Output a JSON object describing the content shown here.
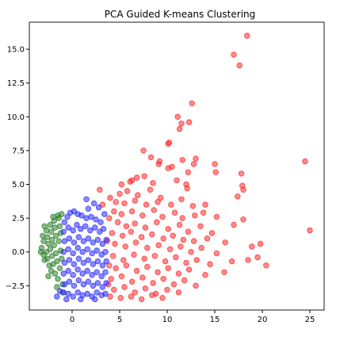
{
  "chart_data": {
    "type": "scatter",
    "title": "PCA Guided K-means Clustering",
    "xlabel": "",
    "ylabel": "",
    "xlim": [
      -4.5,
      26.5
    ],
    "ylim": [
      -4.3,
      17.0
    ],
    "xticks": [
      {
        "value": 0,
        "label": "0"
      },
      {
        "value": 5,
        "label": "5"
      },
      {
        "value": 10,
        "label": "10"
      },
      {
        "value": 15,
        "label": "15"
      },
      {
        "value": 20,
        "label": "20"
      },
      {
        "value": 25,
        "label": "25"
      }
    ],
    "yticks": [
      {
        "value": -2.5,
        "label": "−2.5"
      },
      {
        "value": 0,
        "label": "0.0"
      },
      {
        "value": 2.5,
        "label": "2.5"
      },
      {
        "value": 5,
        "label": "5.0"
      },
      {
        "value": 7.5,
        "label": "7.5"
      },
      {
        "value": 10,
        "label": "10.0"
      },
      {
        "value": 12.5,
        "label": "12.5"
      },
      {
        "value": 15,
        "label": "15.0"
      }
    ],
    "grid": false,
    "marker_opacity": 0.55,
    "series": [
      {
        "color": "#ff2a2a",
        "points": [
          [
            18.4,
            16.0
          ],
          [
            17.0,
            14.6
          ],
          [
            17.6,
            13.8
          ],
          [
            12.6,
            11.0
          ],
          [
            11.1,
            10.0
          ],
          [
            11.5,
            9.5
          ],
          [
            12.3,
            9.6
          ],
          [
            11.3,
            9.1
          ],
          [
            10.2,
            8.1
          ],
          [
            10.1,
            8.0
          ],
          [
            7.5,
            7.5
          ],
          [
            8.3,
            7.0
          ],
          [
            13.0,
            6.9
          ],
          [
            9.2,
            6.7
          ],
          [
            9.1,
            6.5
          ],
          [
            11.6,
            6.8
          ],
          [
            12.8,
            6.5
          ],
          [
            10.1,
            6.2
          ],
          [
            15.0,
            6.5
          ],
          [
            24.5,
            6.7
          ],
          [
            10.5,
            6.3
          ],
          [
            12.2,
            5.9
          ],
          [
            15.1,
            5.9
          ],
          [
            17.8,
            5.8
          ],
          [
            6.3,
            5.3
          ],
          [
            6.8,
            5.5
          ],
          [
            7.6,
            5.6
          ],
          [
            8.5,
            5.1
          ],
          [
            5.2,
            5.0
          ],
          [
            6.1,
            5.2
          ],
          [
            11.0,
            5.3
          ],
          [
            12.0,
            5.0
          ],
          [
            17.9,
            4.9
          ],
          [
            18.0,
            4.6
          ],
          [
            12.1,
            4.7
          ],
          [
            5.0,
            4.3
          ],
          [
            5.8,
            4.5
          ],
          [
            6.9,
            4.2
          ],
          [
            8.2,
            4.6
          ],
          [
            9.3,
            4.0
          ],
          [
            4.6,
            3.7
          ],
          [
            5.5,
            3.6
          ],
          [
            6.6,
            3.8
          ],
          [
            7.8,
            3.5
          ],
          [
            9.0,
            3.7
          ],
          [
            10.4,
            3.5
          ],
          [
            11.5,
            3.9
          ],
          [
            12.7,
            3.4
          ],
          [
            14.0,
            3.5
          ],
          [
            13.8,
            2.9
          ],
          [
            17.4,
            4.1
          ],
          [
            15.2,
            2.6
          ],
          [
            18.0,
            2.4
          ],
          [
            4.4,
            3.0
          ],
          [
            5.2,
            2.8
          ],
          [
            6.3,
            3.0
          ],
          [
            7.4,
            2.7
          ],
          [
            8.6,
            3.1
          ],
          [
            9.5,
            2.6
          ],
          [
            10.8,
            2.9
          ],
          [
            11.6,
            2.5
          ],
          [
            12.9,
            2.7
          ],
          [
            4.8,
            2.2
          ],
          [
            5.7,
            1.9
          ],
          [
            6.6,
            2.1
          ],
          [
            7.7,
            1.8
          ],
          [
            8.9,
            2.2
          ],
          [
            10.1,
            1.7
          ],
          [
            11.3,
            2.0
          ],
          [
            12.2,
            1.5
          ],
          [
            13.5,
            1.9
          ],
          [
            17.0,
            2.0
          ],
          [
            25.0,
            1.6
          ],
          [
            14.7,
            1.4
          ],
          [
            4.2,
            1.4
          ],
          [
            5.3,
            1.2
          ],
          [
            6.2,
            1.5
          ],
          [
            7.3,
            1.1
          ],
          [
            8.4,
            1.3
          ],
          [
            9.6,
            1.0
          ],
          [
            10.6,
            1.2
          ],
          [
            11.7,
            0.9
          ],
          [
            12.8,
            0.8
          ],
          [
            14.2,
            1.0
          ],
          [
            16.1,
            0.7
          ],
          [
            4.5,
            0.6
          ],
          [
            5.6,
            0.4
          ],
          [
            6.7,
            0.7
          ],
          [
            7.9,
            0.3
          ],
          [
            9.1,
            0.5
          ],
          [
            10.3,
            0.2
          ],
          [
            11.4,
            0.4
          ],
          [
            12.5,
            0.0
          ],
          [
            13.6,
            0.3
          ],
          [
            15.2,
            -0.1
          ],
          [
            19.8,
            0.6
          ],
          [
            18.9,
            0.4
          ],
          [
            18.5,
            -0.6
          ],
          [
            19.5,
            -0.4
          ],
          [
            20.4,
            -1.0
          ],
          [
            4.3,
            -0.3
          ],
          [
            5.4,
            -0.6
          ],
          [
            6.5,
            -0.2
          ],
          [
            7.6,
            -0.5
          ],
          [
            8.7,
            -0.3
          ],
          [
            9.8,
            -0.7
          ],
          [
            10.9,
            -0.4
          ],
          [
            12.0,
            -0.8
          ],
          [
            13.1,
            -0.6
          ],
          [
            14.5,
            -0.9
          ],
          [
            16.8,
            -0.7
          ],
          [
            4.6,
            -1.2
          ],
          [
            5.7,
            -1.0
          ],
          [
            6.8,
            -1.4
          ],
          [
            7.9,
            -1.1
          ],
          [
            9.0,
            -1.5
          ],
          [
            10.1,
            -1.2
          ],
          [
            11.2,
            -1.6
          ],
          [
            12.3,
            -1.3
          ],
          [
            14.0,
            -1.7
          ],
          [
            16.0,
            -1.5
          ],
          [
            4.1,
            -2.0
          ],
          [
            5.2,
            -1.8
          ],
          [
            6.3,
            -2.2
          ],
          [
            7.4,
            -1.9
          ],
          [
            8.5,
            -2.3
          ],
          [
            9.6,
            -2.0
          ],
          [
            10.7,
            -2.4
          ],
          [
            11.8,
            -2.1
          ],
          [
            13.0,
            -2.5
          ],
          [
            4.4,
            -2.8
          ],
          [
            5.5,
            -2.6
          ],
          [
            6.6,
            -3.0
          ],
          [
            7.7,
            -2.7
          ],
          [
            8.8,
            -3.1
          ],
          [
            10.0,
            -2.8
          ],
          [
            11.2,
            -3.0
          ],
          [
            4.0,
            -3.3
          ],
          [
            5.1,
            -3.4
          ],
          [
            6.2,
            -3.3
          ],
          [
            7.3,
            -3.5
          ],
          [
            8.4,
            -3.2
          ],
          [
            9.5,
            -3.4
          ],
          [
            3.8,
            -2.4
          ],
          [
            3.9,
            -1.0
          ],
          [
            3.7,
            0.8
          ],
          [
            3.9,
            2.5
          ],
          [
            4.0,
            4.0
          ],
          [
            2.9,
            4.6
          ],
          [
            3.2,
            3.5
          ]
        ]
      },
      {
        "color": "#2a7f2a",
        "points": [
          [
            -3.1,
            1.2
          ],
          [
            -3.0,
            0.8
          ],
          [
            -3.2,
            0.3
          ],
          [
            -3.0,
            -0.2
          ],
          [
            -2.9,
            -0.6
          ],
          [
            -2.7,
            1.6
          ],
          [
            -2.6,
            1.1
          ],
          [
            -2.5,
            0.6
          ],
          [
            -2.7,
            0.0
          ],
          [
            -2.6,
            -0.5
          ],
          [
            -2.4,
            -1.0
          ],
          [
            -2.3,
            2.0
          ],
          [
            -2.2,
            1.5
          ],
          [
            -2.1,
            0.9
          ],
          [
            -2.3,
            0.2
          ],
          [
            -2.1,
            -0.3
          ],
          [
            -2.0,
            -0.9
          ],
          [
            -2.2,
            -1.4
          ],
          [
            -1.9,
            2.3
          ],
          [
            -1.8,
            1.8
          ],
          [
            -1.7,
            1.2
          ],
          [
            -1.9,
            0.5
          ],
          [
            -1.7,
            -0.1
          ],
          [
            -1.6,
            -0.7
          ],
          [
            -1.8,
            -1.6
          ],
          [
            -1.5,
            -2.0
          ],
          [
            -1.4,
            2.5
          ],
          [
            -1.3,
            1.9
          ],
          [
            -1.2,
            1.4
          ],
          [
            -1.4,
            0.8
          ],
          [
            -1.2,
            0.1
          ],
          [
            -1.1,
            -0.5
          ],
          [
            -1.3,
            -1.2
          ],
          [
            -1.0,
            -2.4
          ],
          [
            -2.5,
            -1.8
          ],
          [
            -2.9,
            1.9
          ],
          [
            -1.5,
            2.7
          ],
          [
            -1.1,
            2.8
          ],
          [
            -2.0,
            2.6
          ],
          [
            -3.3,
            0.0
          ],
          [
            -1.0,
            -3.0
          ],
          [
            -1.6,
            -2.6
          ]
        ]
      },
      {
        "color": "#2a2aff",
        "points": [
          [
            -0.8,
            2.2
          ],
          [
            -0.5,
            2.6
          ],
          [
            -0.2,
            2.9
          ],
          [
            0.2,
            3.0
          ],
          [
            0.6,
            2.8
          ],
          [
            1.0,
            2.7
          ],
          [
            1.5,
            2.5
          ],
          [
            2.0,
            2.6
          ],
          [
            2.5,
            2.4
          ],
          [
            3.0,
            2.2
          ],
          [
            1.7,
            3.2
          ],
          [
            2.3,
            3.6
          ],
          [
            1.5,
            3.9
          ],
          [
            2.8,
            3.3
          ],
          [
            3.4,
            2.8
          ],
          [
            -0.9,
            1.5
          ],
          [
            -0.4,
            1.8
          ],
          [
            0.1,
            1.6
          ],
          [
            0.5,
            2.0
          ],
          [
            0.9,
            1.7
          ],
          [
            1.4,
            1.9
          ],
          [
            1.9,
            1.6
          ],
          [
            2.4,
            1.8
          ],
          [
            2.9,
            1.5
          ],
          [
            3.3,
            1.7
          ],
          [
            -0.8,
            0.8
          ],
          [
            -0.3,
            1.0
          ],
          [
            0.2,
            0.7
          ],
          [
            0.7,
            1.1
          ],
          [
            1.2,
            0.8
          ],
          [
            1.7,
            1.0
          ],
          [
            2.2,
            0.7
          ],
          [
            2.7,
            0.9
          ],
          [
            3.2,
            0.6
          ],
          [
            3.6,
            0.9
          ],
          [
            -0.9,
            0.0
          ],
          [
            -0.4,
            0.2
          ],
          [
            0.1,
            -0.1
          ],
          [
            0.6,
            0.3
          ],
          [
            1.1,
            0.0
          ],
          [
            1.6,
            0.2
          ],
          [
            2.1,
            -0.1
          ],
          [
            2.6,
            0.1
          ],
          [
            3.1,
            -0.2
          ],
          [
            3.5,
            0.0
          ],
          [
            -0.8,
            -0.8
          ],
          [
            -0.3,
            -0.6
          ],
          [
            0.2,
            -0.9
          ],
          [
            0.7,
            -0.5
          ],
          [
            1.2,
            -0.8
          ],
          [
            1.7,
            -0.6
          ],
          [
            2.2,
            -0.9
          ],
          [
            2.7,
            -0.7
          ],
          [
            3.2,
            -1.0
          ],
          [
            3.6,
            -0.7
          ],
          [
            -0.9,
            -1.6
          ],
          [
            -0.4,
            -1.4
          ],
          [
            0.1,
            -1.7
          ],
          [
            0.6,
            -1.3
          ],
          [
            1.1,
            -1.6
          ],
          [
            1.6,
            -1.4
          ],
          [
            2.1,
            -1.7
          ],
          [
            2.6,
            -1.5
          ],
          [
            3.1,
            -1.8
          ],
          [
            3.5,
            -1.5
          ],
          [
            -0.8,
            -2.4
          ],
          [
            -0.3,
            -2.2
          ],
          [
            0.2,
            -2.5
          ],
          [
            0.7,
            -2.1
          ],
          [
            1.2,
            -2.4
          ],
          [
            1.7,
            -2.2
          ],
          [
            2.2,
            -2.5
          ],
          [
            2.7,
            -2.3
          ],
          [
            3.2,
            -2.6
          ],
          [
            3.6,
            -2.3
          ],
          [
            -0.9,
            -3.0
          ],
          [
            -0.4,
            -3.1
          ],
          [
            0.1,
            -3.3
          ],
          [
            0.6,
            -3.0
          ],
          [
            1.1,
            -3.2
          ],
          [
            1.6,
            -3.1
          ],
          [
            2.1,
            -3.3
          ],
          [
            2.6,
            -3.0
          ],
          [
            3.1,
            -3.2
          ],
          [
            3.5,
            -3.1
          ],
          [
            -1.6,
            -3.3
          ],
          [
            -1.3,
            -2.9
          ],
          [
            -0.6,
            -3.5
          ],
          [
            0.9,
            -3.5
          ],
          [
            2.4,
            -3.5
          ]
        ]
      }
    ]
  }
}
